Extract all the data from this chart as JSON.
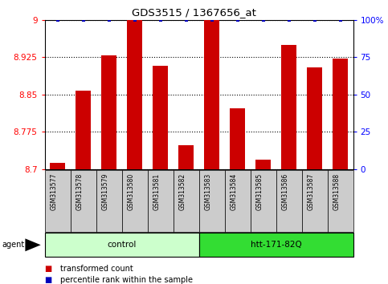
{
  "title": "GDS3515 / 1367656_at",
  "samples": [
    "GSM313577",
    "GSM313578",
    "GSM313579",
    "GSM313580",
    "GSM313581",
    "GSM313582",
    "GSM313583",
    "GSM313584",
    "GSM313585",
    "GSM313586",
    "GSM313587",
    "GSM313588"
  ],
  "bar_values": [
    8.712,
    8.858,
    8.928,
    9.0,
    8.908,
    8.748,
    9.0,
    8.822,
    8.718,
    8.95,
    8.905,
    8.922
  ],
  "percentile_values": [
    100,
    100,
    100,
    100,
    100,
    100,
    100,
    100,
    100,
    100,
    100,
    100
  ],
  "bar_color": "#cc0000",
  "dot_color": "#0000bb",
  "ylim_left": [
    8.7,
    9.0
  ],
  "ylim_right": [
    0,
    100
  ],
  "yticks_left": [
    8.7,
    8.775,
    8.85,
    8.925,
    9.0
  ],
  "ytick_labels_left": [
    "8.7",
    "8.775",
    "8.85",
    "8.925",
    "9"
  ],
  "yticks_right": [
    0,
    25,
    50,
    75,
    100
  ],
  "ytick_labels_right": [
    "0",
    "25",
    "50",
    "75",
    "100%"
  ],
  "groups": [
    {
      "label": "control",
      "start": 0,
      "end": 6,
      "color": "#ccffcc"
    },
    {
      "label": "htt-171-82Q",
      "start": 6,
      "end": 12,
      "color": "#33dd33"
    }
  ],
  "agent_label": "agent",
  "legend_items": [
    {
      "label": "transformed count",
      "color": "#cc0000"
    },
    {
      "label": "percentile rank within the sample",
      "color": "#0000bb"
    }
  ],
  "bar_width": 0.6,
  "sample_bg_color": "#cccccc",
  "group_border_color": "#000000",
  "spine_color": "#000000"
}
